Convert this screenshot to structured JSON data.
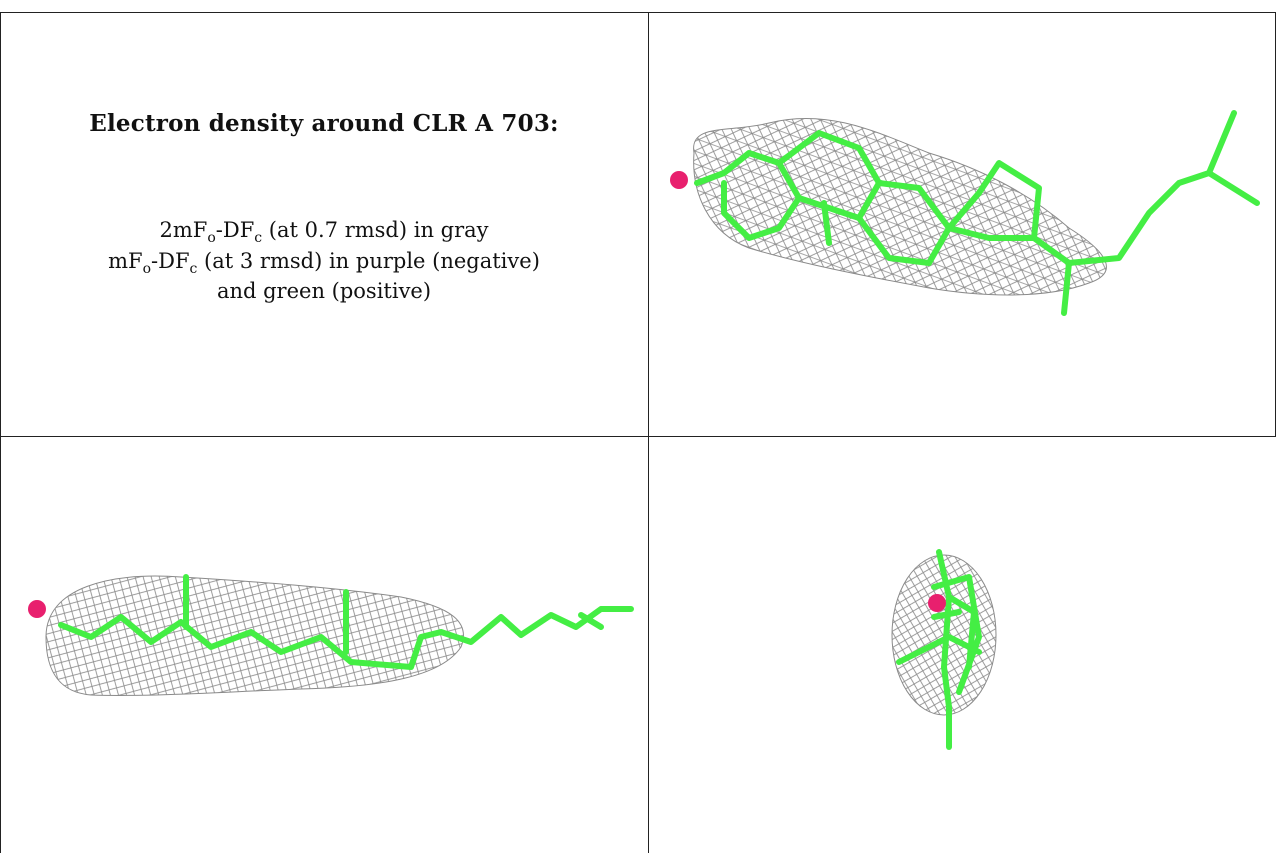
{
  "caption": {
    "title": "Electron density around CLR A 703:",
    "line1": {
      "prefix": "2mF",
      "sub_o": "o",
      "mid": "-DF",
      "sub_c": "c",
      "suffix": " (at 0.7 rmsd) in gray"
    },
    "line2": {
      "prefix": "mF",
      "sub_o": "o",
      "mid": "-DF",
      "sub_c": "c",
      "suffix": " (at 3 rmsd) in purple (negative)"
    },
    "line3": "and green (positive)"
  },
  "colors": {
    "mesh": "#8a8a8a",
    "ligand": "#44ee44",
    "oxygen": "#e8206e",
    "border": "#222222"
  },
  "panels": [
    {
      "name": "top-right",
      "view": "front"
    },
    {
      "name": "bottom-left",
      "view": "side"
    },
    {
      "name": "bottom-right",
      "view": "end-on"
    }
  ]
}
